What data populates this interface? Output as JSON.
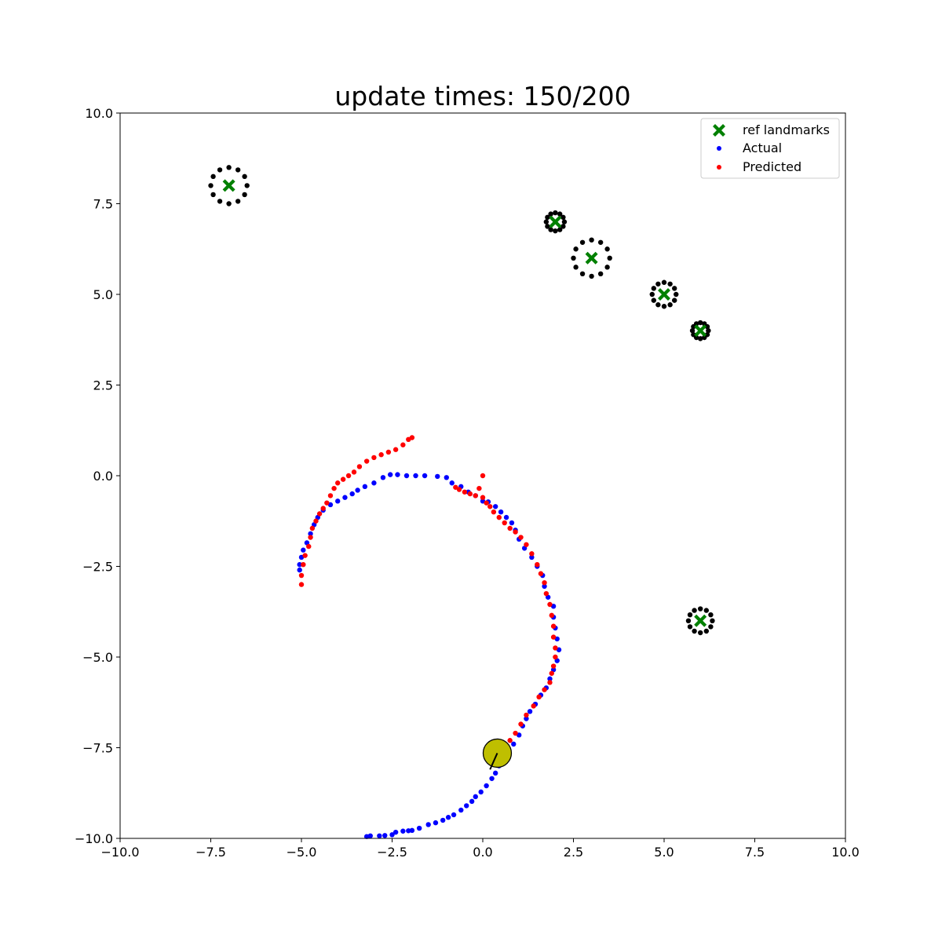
{
  "chart_data": {
    "type": "scatter",
    "title": "update times: 150/200",
    "xlabel": "",
    "ylabel": "",
    "xlim": [
      -10,
      10
    ],
    "ylim": [
      -10,
      10
    ],
    "grid": false,
    "legend_placement": "top-right",
    "x_ticks": [
      -10.0,
      -7.5,
      -5.0,
      -2.5,
      0.0,
      2.5,
      5.0,
      7.5,
      10.0
    ],
    "x_tick_labels": [
      "−10.0",
      "−7.5",
      "−5.0",
      "−2.5",
      "0.0",
      "2.5",
      "5.0",
      "7.5",
      "10.0"
    ],
    "y_ticks": [
      -10.0,
      -7.5,
      -5.0,
      -2.5,
      0.0,
      2.5,
      5.0,
      7.5,
      10.0
    ],
    "y_tick_labels": [
      "−10.0",
      "−7.5",
      "−5.0",
      "−2.5",
      "0.0",
      "2.5",
      "5.0",
      "7.5",
      "10.0"
    ],
    "legend": [
      {
        "label": "ref landmarks",
        "marker": "x",
        "color": "#008000"
      },
      {
        "label": "Actual",
        "marker": "dot",
        "color": "#0000ff"
      },
      {
        "label": "Predicted",
        "marker": "dot",
        "color": "#ff0000"
      }
    ],
    "landmarks": {
      "color": "#008000",
      "points": [
        [
          -7,
          8
        ],
        [
          2,
          7
        ],
        [
          3,
          6
        ],
        [
          5,
          5
        ],
        [
          6,
          4
        ],
        [
          6,
          -4
        ]
      ]
    },
    "uncertainty_rings": {
      "color": "#000000",
      "points_per_ring": 12,
      "rings": [
        {
          "center": [
            -7,
            8
          ],
          "radius": 0.5
        },
        {
          "center": [
            2,
            7
          ],
          "radius": 0.25
        },
        {
          "center": [
            3,
            6
          ],
          "radius": 0.5
        },
        {
          "center": [
            5,
            5
          ],
          "radius": 0.33
        },
        {
          "center": [
            6,
            4
          ],
          "radius": 0.22
        },
        {
          "center": [
            6,
            -4
          ],
          "radius": 0.33
        }
      ]
    },
    "series": [
      {
        "name": "Actual",
        "color": "#0000ff",
        "points": [
          [
            -3.2,
            -9.95
          ],
          [
            -3.1,
            -9.93
          ],
          [
            -2.85,
            -9.93
          ],
          [
            -2.7,
            -9.92
          ],
          [
            -2.5,
            -9.9
          ],
          [
            -2.4,
            -9.83
          ],
          [
            -2.2,
            -9.8
          ],
          [
            -2.05,
            -9.79
          ],
          [
            -1.95,
            -9.78
          ],
          [
            -1.75,
            -9.72
          ],
          [
            -1.5,
            -9.62
          ],
          [
            -1.3,
            -9.57
          ],
          [
            -1.1,
            -9.5
          ],
          [
            -0.95,
            -9.42
          ],
          [
            -0.8,
            -9.35
          ],
          [
            -0.6,
            -9.22
          ],
          [
            -0.45,
            -9.1
          ],
          [
            -0.3,
            -8.98
          ],
          [
            -0.2,
            -8.85
          ],
          [
            -0.05,
            -8.72
          ],
          [
            0.1,
            -8.55
          ],
          [
            0.25,
            -8.35
          ],
          [
            0.35,
            -8.2
          ],
          [
            0.45,
            -8.0
          ],
          [
            0.55,
            -7.75
          ],
          [
            0.7,
            -7.55
          ],
          [
            0.85,
            -7.4
          ],
          [
            1.0,
            -7.15
          ],
          [
            1.1,
            -6.9
          ],
          [
            1.2,
            -6.7
          ],
          [
            1.3,
            -6.5
          ],
          [
            1.45,
            -6.3
          ],
          [
            1.6,
            -6.05
          ],
          [
            1.75,
            -5.85
          ],
          [
            1.85,
            -5.6
          ],
          [
            1.95,
            -5.35
          ],
          [
            2.05,
            -5.1
          ],
          [
            2.1,
            -4.8
          ],
          [
            2.05,
            -4.5
          ],
          [
            2.0,
            -4.2
          ],
          [
            1.95,
            -3.9
          ],
          [
            1.95,
            -3.6
          ],
          [
            1.8,
            -3.35
          ],
          [
            1.7,
            -3.05
          ],
          [
            1.65,
            -2.75
          ],
          [
            1.5,
            -2.5
          ],
          [
            1.35,
            -2.25
          ],
          [
            1.15,
            -2.0
          ],
          [
            1.0,
            -1.75
          ],
          [
            0.9,
            -1.5
          ],
          [
            0.8,
            -1.3
          ],
          [
            0.65,
            -1.15
          ],
          [
            0.5,
            -1.0
          ],
          [
            0.35,
            -0.85
          ],
          [
            0.15,
            -0.72
          ],
          [
            0.0,
            -0.7
          ],
          [
            -0.2,
            -0.55
          ],
          [
            -0.4,
            -0.45
          ],
          [
            -0.6,
            -0.3
          ],
          [
            -0.85,
            -0.2
          ],
          [
            -1.0,
            -0.05
          ],
          [
            -1.25,
            -0.02
          ],
          [
            -1.6,
            0.0
          ],
          [
            -1.85,
            0.0
          ],
          [
            -2.1,
            0.0
          ],
          [
            -2.35,
            0.03
          ],
          [
            -2.55,
            0.03
          ],
          [
            -2.75,
            -0.05
          ],
          [
            -3.0,
            -0.2
          ],
          [
            -3.25,
            -0.3
          ],
          [
            -3.45,
            -0.4
          ],
          [
            -3.6,
            -0.5
          ],
          [
            -3.8,
            -0.6
          ],
          [
            -4.0,
            -0.7
          ],
          [
            -4.2,
            -0.8
          ],
          [
            -4.4,
            -0.95
          ],
          [
            -4.55,
            -1.15
          ],
          [
            -4.65,
            -1.35
          ],
          [
            -4.75,
            -1.6
          ],
          [
            -4.85,
            -1.85
          ],
          [
            -4.95,
            -2.05
          ],
          [
            -5.0,
            -2.25
          ],
          [
            -5.05,
            -2.45
          ],
          [
            -5.05,
            -2.6
          ]
        ]
      },
      {
        "name": "Predicted",
        "color": "#ff0000",
        "points": [
          [
            0.6,
            -7.45
          ],
          [
            0.75,
            -7.3
          ],
          [
            0.9,
            -7.1
          ],
          [
            1.05,
            -6.85
          ],
          [
            1.2,
            -6.6
          ],
          [
            1.4,
            -6.35
          ],
          [
            1.55,
            -6.1
          ],
          [
            1.7,
            -5.9
          ],
          [
            1.85,
            -5.7
          ],
          [
            1.9,
            -5.45
          ],
          [
            1.95,
            -5.25
          ],
          [
            2.0,
            -5.0
          ],
          [
            2.0,
            -4.75
          ],
          [
            1.95,
            -4.45
          ],
          [
            1.95,
            -4.15
          ],
          [
            1.9,
            -3.85
          ],
          [
            1.85,
            -3.55
          ],
          [
            1.75,
            -3.25
          ],
          [
            1.7,
            -2.95
          ],
          [
            1.6,
            -2.7
          ],
          [
            1.5,
            -2.45
          ],
          [
            1.35,
            -2.15
          ],
          [
            1.2,
            -1.9
          ],
          [
            1.05,
            -1.7
          ],
          [
            0.9,
            -1.55
          ],
          [
            0.75,
            -1.45
          ],
          [
            0.6,
            -1.3
          ],
          [
            0.45,
            -1.15
          ],
          [
            0.3,
            -1.0
          ],
          [
            0.2,
            -0.85
          ],
          [
            0.1,
            -0.75
          ],
          [
            0.0,
            -0.6
          ],
          [
            -0.2,
            -0.55
          ],
          [
            -0.35,
            -0.5
          ],
          [
            -0.5,
            -0.45
          ],
          [
            -0.65,
            -0.38
          ],
          [
            -0.75,
            -0.32
          ],
          [
            -0.1,
            -0.35
          ],
          [
            0.0,
            0.0
          ],
          [
            -5.0,
            -3.0
          ],
          [
            -5.0,
            -2.75
          ],
          [
            -4.95,
            -2.45
          ],
          [
            -4.9,
            -2.2
          ],
          [
            -4.8,
            -1.95
          ],
          [
            -4.75,
            -1.7
          ],
          [
            -4.7,
            -1.45
          ],
          [
            -4.6,
            -1.25
          ],
          [
            -4.5,
            -1.05
          ],
          [
            -4.4,
            -0.9
          ],
          [
            -4.3,
            -0.75
          ],
          [
            -4.2,
            -0.55
          ],
          [
            -4.1,
            -0.35
          ],
          [
            -4.0,
            -0.2
          ],
          [
            -3.85,
            -0.1
          ],
          [
            -3.7,
            0.0
          ],
          [
            -3.55,
            0.1
          ],
          [
            -3.4,
            0.25
          ],
          [
            -3.2,
            0.4
          ],
          [
            -3.0,
            0.5
          ],
          [
            -2.8,
            0.58
          ],
          [
            -2.6,
            0.65
          ],
          [
            -2.4,
            0.72
          ],
          [
            -2.2,
            0.85
          ],
          [
            -2.05,
            1.0
          ],
          [
            -1.95,
            1.05
          ]
        ]
      }
    ],
    "robot": {
      "position": [
        0.4,
        -7.65
      ],
      "heading_end": [
        0.2,
        -8.1
      ],
      "color": "#bfbf00"
    }
  }
}
